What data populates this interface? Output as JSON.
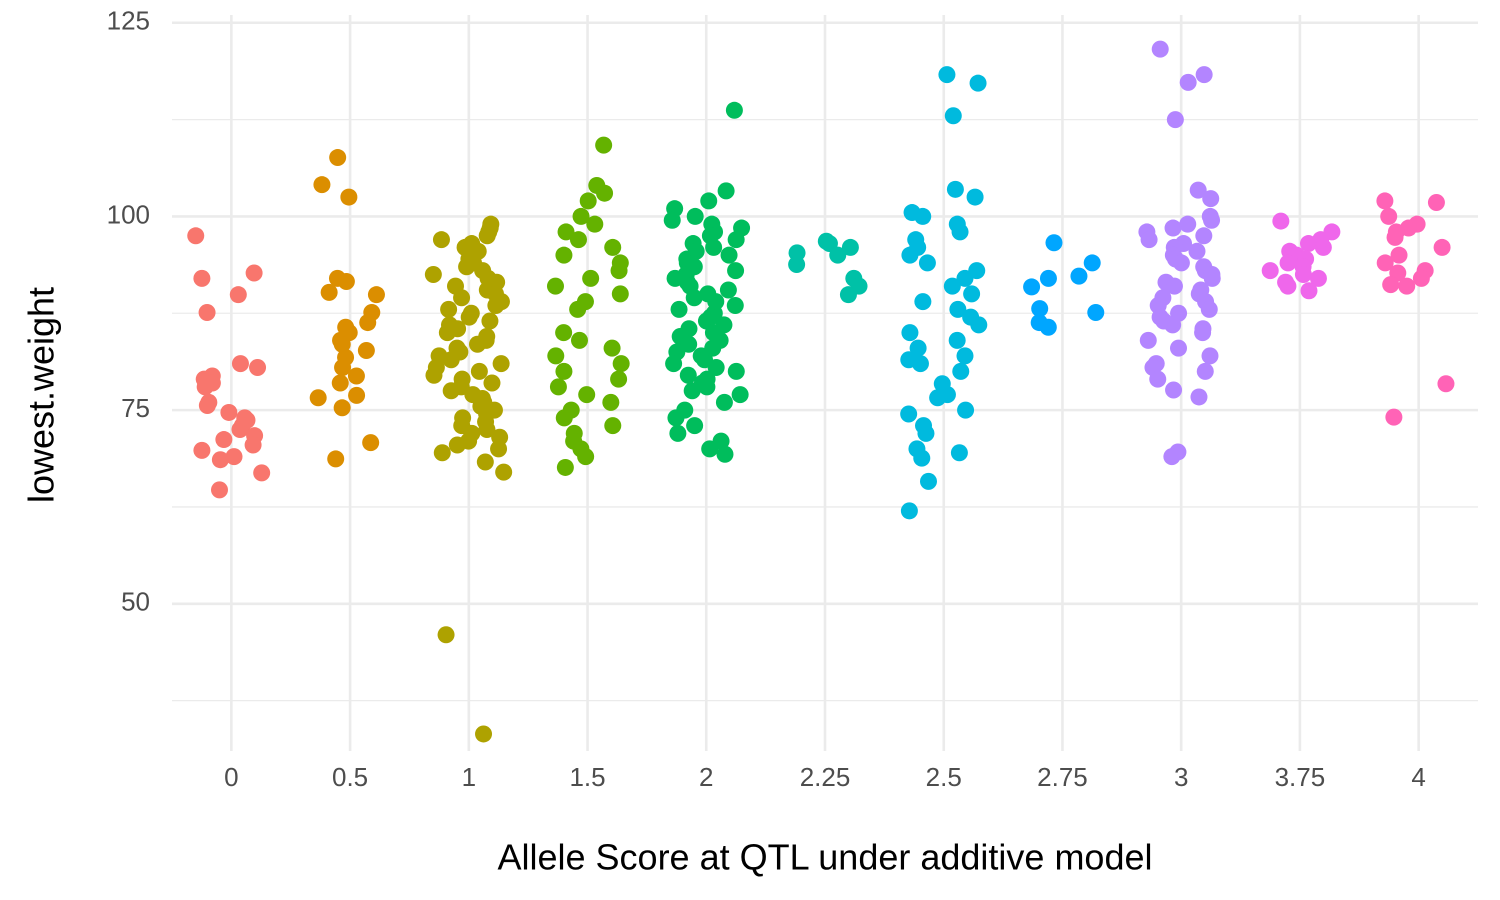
{
  "chart_data": {
    "type": "strip",
    "x_label": "Allele Score at QTL under additive model",
    "y_label": "lowest.weight",
    "categories": [
      "0",
      "0.5",
      "1",
      "1.5",
      "2",
      "2.25",
      "2.5",
      "2.75",
      "3",
      "3.75",
      "4"
    ],
    "colors": [
      "#F8766D",
      "#DB8E00",
      "#AEA200",
      "#64B200",
      "#00BD5C",
      "#00C1A7",
      "#00BADE",
      "#00A6FF",
      "#B385FF",
      "#EF67EB",
      "#FF63B6"
    ],
    "values": [
      [
        97.5,
        92.7,
        92,
        89.9,
        87.6,
        81,
        80.5,
        79.4,
        79,
        78.5,
        78,
        76,
        75.6,
        74.7,
        74,
        73.7,
        73,
        72.5,
        71.7,
        71.2,
        70.5,
        69.8,
        69,
        68.6,
        66.9,
        64.7
      ],
      [
        107.6,
        104.1,
        102.5,
        92,
        91.6,
        90.2,
        89.9,
        87.6,
        86.3,
        85.7,
        85,
        84,
        83.5,
        82.7,
        81.8,
        80.5,
        79.4,
        78.5,
        76.9,
        76.6,
        75.3,
        70.8,
        68.7
      ],
      [
        99,
        98.5,
        98,
        97.5,
        97,
        96.5,
        96,
        95.5,
        95,
        94.5,
        94,
        93.5,
        93,
        92.5,
        92,
        91.5,
        91,
        90.5,
        90,
        89.5,
        89,
        88.5,
        88,
        87.5,
        87,
        86.5,
        86,
        85.5,
        85,
        84.5,
        84,
        83.5,
        83,
        82.5,
        82,
        81.5,
        81,
        80.5,
        80,
        79.5,
        79,
        78.5,
        78,
        77.5,
        77,
        76.5,
        76,
        75.5,
        75,
        74.5,
        74,
        73.5,
        73,
        72.5,
        72,
        71.5,
        71,
        70.5,
        70,
        69.5,
        68.3,
        67,
        46,
        33.2
      ],
      [
        109.2,
        104,
        103,
        102,
        100,
        99,
        98,
        97,
        96,
        95,
        94,
        93,
        92,
        91,
        90,
        89,
        88,
        85,
        84,
        83,
        82,
        81,
        80,
        79,
        78,
        77,
        76,
        75,
        74,
        73,
        72,
        71,
        70,
        69,
        67.6
      ],
      [
        113.7,
        103.3,
        102,
        101,
        100,
        99.5,
        99,
        98.5,
        98,
        97.5,
        97,
        96.5,
        96,
        95.5,
        95,
        94.5,
        94,
        93.5,
        93,
        92.5,
        92,
        91.5,
        91,
        90.5,
        90,
        89.5,
        89,
        88.5,
        88,
        87.5,
        87,
        86.5,
        86,
        85.5,
        85,
        84.5,
        84,
        83.5,
        83,
        82.5,
        82,
        81.5,
        81,
        80.5,
        80,
        79.5,
        79,
        78.5,
        78,
        77.5,
        77,
        76,
        75,
        74,
        73,
        72,
        71,
        70,
        69.3
      ],
      [
        96.8,
        96.5,
        96,
        95.3,
        95,
        93.8,
        92,
        91,
        89.9
      ],
      [
        118.3,
        117.2,
        113,
        103.5,
        102.5,
        100.5,
        100,
        99,
        98,
        97,
        96,
        95,
        94,
        93,
        92,
        91,
        90,
        89,
        88,
        87,
        86,
        85,
        84,
        83,
        82,
        81.5,
        81,
        80,
        78.4,
        77,
        76.6,
        75,
        74.5,
        73,
        72,
        70,
        69.5,
        68.8,
        65.8,
        62
      ],
      [
        96.6,
        94,
        92.3,
        92,
        90.9,
        88.1,
        87.6,
        86.3,
        85.7
      ],
      [
        121.6,
        118.3,
        117.3,
        112.5,
        103.4,
        102.3,
        100,
        99.5,
        99,
        98.5,
        98,
        97.5,
        97,
        96.5,
        96,
        95.5,
        95,
        94.5,
        94,
        93.5,
        93,
        92.5,
        92,
        91.5,
        91,
        90.5,
        90,
        89.5,
        89,
        88.5,
        88,
        87.5,
        87,
        86.5,
        86,
        85.5,
        85,
        84,
        83,
        82,
        81,
        80.5,
        80,
        79,
        77.6,
        76.7,
        69.6,
        69
      ],
      [
        99.4,
        98,
        97,
        96.5,
        96,
        95.5,
        95,
        94.5,
        94,
        93.5,
        93,
        92.5,
        92,
        91.5,
        91,
        90.4
      ],
      [
        102,
        101.8,
        100,
        99,
        98.5,
        98,
        97.3,
        96,
        95,
        94,
        93,
        92.7,
        92,
        91.2,
        91,
        78.4,
        74.1
      ]
    ],
    "ylim": [
      31,
      126
    ],
    "yticks": [
      50,
      75,
      100,
      125
    ],
    "minor_yticks": [
      37.5,
      62.5,
      87.5,
      112.5
    ],
    "grid": true
  }
}
